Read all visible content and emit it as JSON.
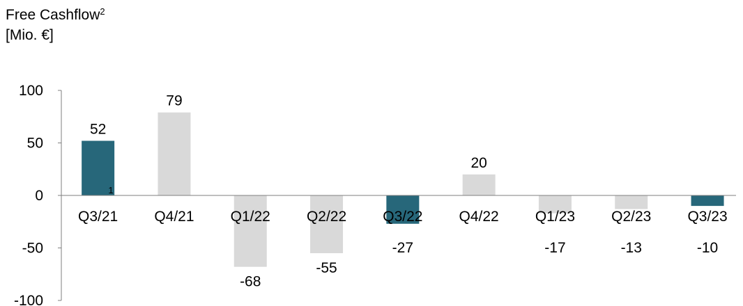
{
  "title": {
    "main": "Free Cashflow",
    "superscript": "2",
    "unit": "[Mio. €]"
  },
  "colors": {
    "highlight": "#27677a",
    "regular": "#d9d9d9",
    "axis": "#7f7f7f"
  },
  "chart_data": {
    "type": "bar",
    "title": "Free Cashflow",
    "ylabel": "[Mio. €]",
    "xlabel": "",
    "categories": [
      "Q3/21",
      "Q4/21",
      "Q1/22",
      "Q2/22",
      "Q3/22",
      "Q4/22",
      "Q1/23",
      "Q2/23",
      "Q3/23"
    ],
    "values": [
      52,
      79,
      -68,
      -55,
      -27,
      20,
      -17,
      -13,
      -10
    ],
    "data_labels": [
      "52",
      "79",
      "-68",
      "-55",
      "-27",
      "20",
      "-17",
      "-13",
      "-10"
    ],
    "highlighted": [
      true,
      false,
      false,
      false,
      true,
      false,
      false,
      false,
      true
    ],
    "ylim": [
      -100,
      100
    ],
    "yticks": [
      100,
      50,
      0,
      -50,
      -100
    ],
    "ytick_labels": [
      "100",
      "50",
      "0",
      "-50",
      "-100"
    ],
    "annotations": [
      {
        "category": "Q3/21",
        "text": "1"
      }
    ],
    "grid": false,
    "legend": "none"
  }
}
